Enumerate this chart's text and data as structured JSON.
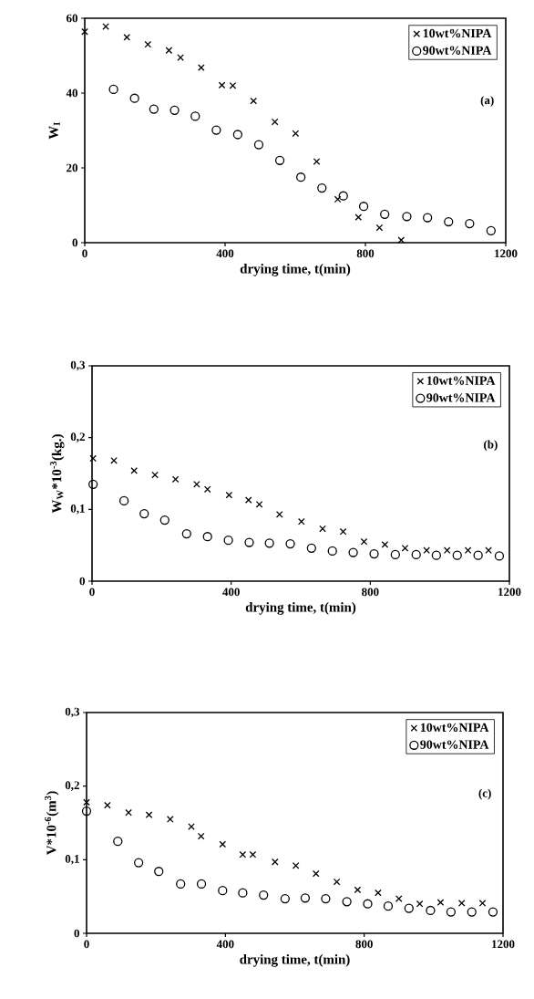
{
  "chart_data": [
    {
      "type": "scatter",
      "xlabel": "drying time, t(min)",
      "ylabel": "W$_{I}$",
      "annotations": [
        "(a)"
      ],
      "legend": "top right",
      "xlim": [
        0,
        1200
      ],
      "xticks": [
        0,
        400,
        800,
        1200
      ],
      "ylim": [
        0,
        60
      ],
      "yticks": [
        0,
        20,
        40,
        60
      ],
      "series": [
        {
          "name": "10wt%NIPA",
          "color": "#000000",
          "marker": "cross",
          "x": [
            0,
            60,
            120,
            180,
            240,
            273,
            332,
            391,
            422,
            481,
            542,
            601,
            661,
            721,
            780,
            840,
            902
          ],
          "values": [
            56.4,
            57.8,
            54.9,
            53,
            51.4,
            49.5,
            46.8,
            42.1,
            42,
            37.9,
            32.3,
            29.2,
            21.7,
            11.6,
            6.8,
            4,
            0.7
          ]
        },
        {
          "name": "90wt%NIPA",
          "color": "#000000",
          "marker": "circle",
          "x": [
            82,
            142,
            197,
            256,
            315,
            375,
            436,
            496,
            556,
            616,
            676,
            737,
            795,
            855,
            918,
            977,
            1037,
            1097,
            1158
          ],
          "values": [
            41,
            38.6,
            35.7,
            35.4,
            33.8,
            30.1,
            28.9,
            26.2,
            22,
            17.5,
            14.6,
            12.5,
            9.7,
            7.6,
            7,
            6.7,
            5.6,
            5.1,
            3.2
          ]
        }
      ]
    },
    {
      "type": "scatter",
      "xlabel": "drying time, t(min)",
      "ylabel": "W$_{W}$*10$^{-3}$(kg.)",
      "annotations": [
        "(b)"
      ],
      "legend": "top right",
      "xlim": [
        0,
        1200
      ],
      "xticks": [
        0,
        400,
        800,
        1200
      ],
      "ylim": [
        0,
        0.3
      ],
      "yticks": [
        0,
        {
          "value": 0.1,
          "label": "0,1"
        },
        {
          "value": 0.2,
          "label": "0,2"
        },
        {
          "value": 0.3,
          "label": "0,3"
        }
      ],
      "series": [
        {
          "name": "10wt%NIPA",
          "color": "#000000",
          "marker": "cross",
          "x": [
            3,
            63,
            121,
            181,
            240,
            301,
            332,
            394,
            450,
            481,
            539,
            602,
            663,
            722,
            782,
            842,
            900,
            962,
            1021,
            1081,
            1140
          ],
          "values": [
            0.171,
            0.168,
            0.154,
            0.148,
            0.142,
            0.135,
            0.128,
            0.12,
            0.113,
            0.107,
            0.093,
            0.083,
            0.073,
            0.069,
            0.055,
            0.051,
            0.046,
            0.043,
            0.043,
            0.043,
            0.043
          ]
        },
        {
          "name": "90wt%NIPA",
          "color": "#000000",
          "marker": "circle",
          "x": [
            3,
            92,
            150,
            209,
            272,
            332,
            392,
            452,
            510,
            570,
            631,
            691,
            751,
            811,
            872,
            932,
            990,
            1050,
            1110,
            1171
          ],
          "values": [
            0.135,
            0.112,
            0.094,
            0.085,
            0.066,
            0.062,
            0.057,
            0.054,
            0.053,
            0.052,
            0.046,
            0.042,
            0.04,
            0.038,
            0.037,
            0.037,
            0.036,
            0.036,
            0.036,
            0.035
          ]
        }
      ]
    },
    {
      "type": "scatter",
      "xlabel": "drying time, t(min)",
      "ylabel": "V*10$^{-6}$(m$^{3}$)",
      "annotations": [
        "(c)"
      ],
      "legend": "top right",
      "xlim": [
        0,
        1200
      ],
      "xticks": [
        0,
        400,
        800,
        1200
      ],
      "ylim": [
        0,
        0.3
      ],
      "yticks": [
        0,
        {
          "value": 0.1,
          "label": "0,1"
        },
        {
          "value": 0.2,
          "label": "0,2"
        },
        {
          "value": 0.3,
          "label": "0,3"
        }
      ],
      "series": [
        {
          "name": "10wt%NIPA",
          "color": "#000000",
          "marker": "cross",
          "x": [
            0,
            60,
            121,
            180,
            241,
            302,
            330,
            392,
            450,
            479,
            543,
            603,
            661,
            721,
            781,
            840,
            900,
            960,
            1020,
            1081,
            1141
          ],
          "values": [
            0.178,
            0.174,
            0.164,
            0.161,
            0.155,
            0.145,
            0.132,
            0.121,
            0.107,
            0.107,
            0.097,
            0.092,
            0.081,
            0.07,
            0.059,
            0.055,
            0.047,
            0.04,
            0.042,
            0.041,
            0.041
          ]
        },
        {
          "name": "90wt%NIPA",
          "color": "#000000",
          "marker": "circle",
          "x": [
            0,
            90,
            150,
            208,
            271,
            331,
            392,
            450,
            510,
            572,
            630,
            689,
            750,
            810,
            869,
            929,
            991,
            1050,
            1110,
            1171
          ],
          "values": [
            0.166,
            0.125,
            0.096,
            0.084,
            0.067,
            0.067,
            0.058,
            0.055,
            0.052,
            0.047,
            0.048,
            0.047,
            0.043,
            0.04,
            0.037,
            0.034,
            0.031,
            0.029,
            0.029,
            0.029
          ]
        }
      ]
    }
  ]
}
